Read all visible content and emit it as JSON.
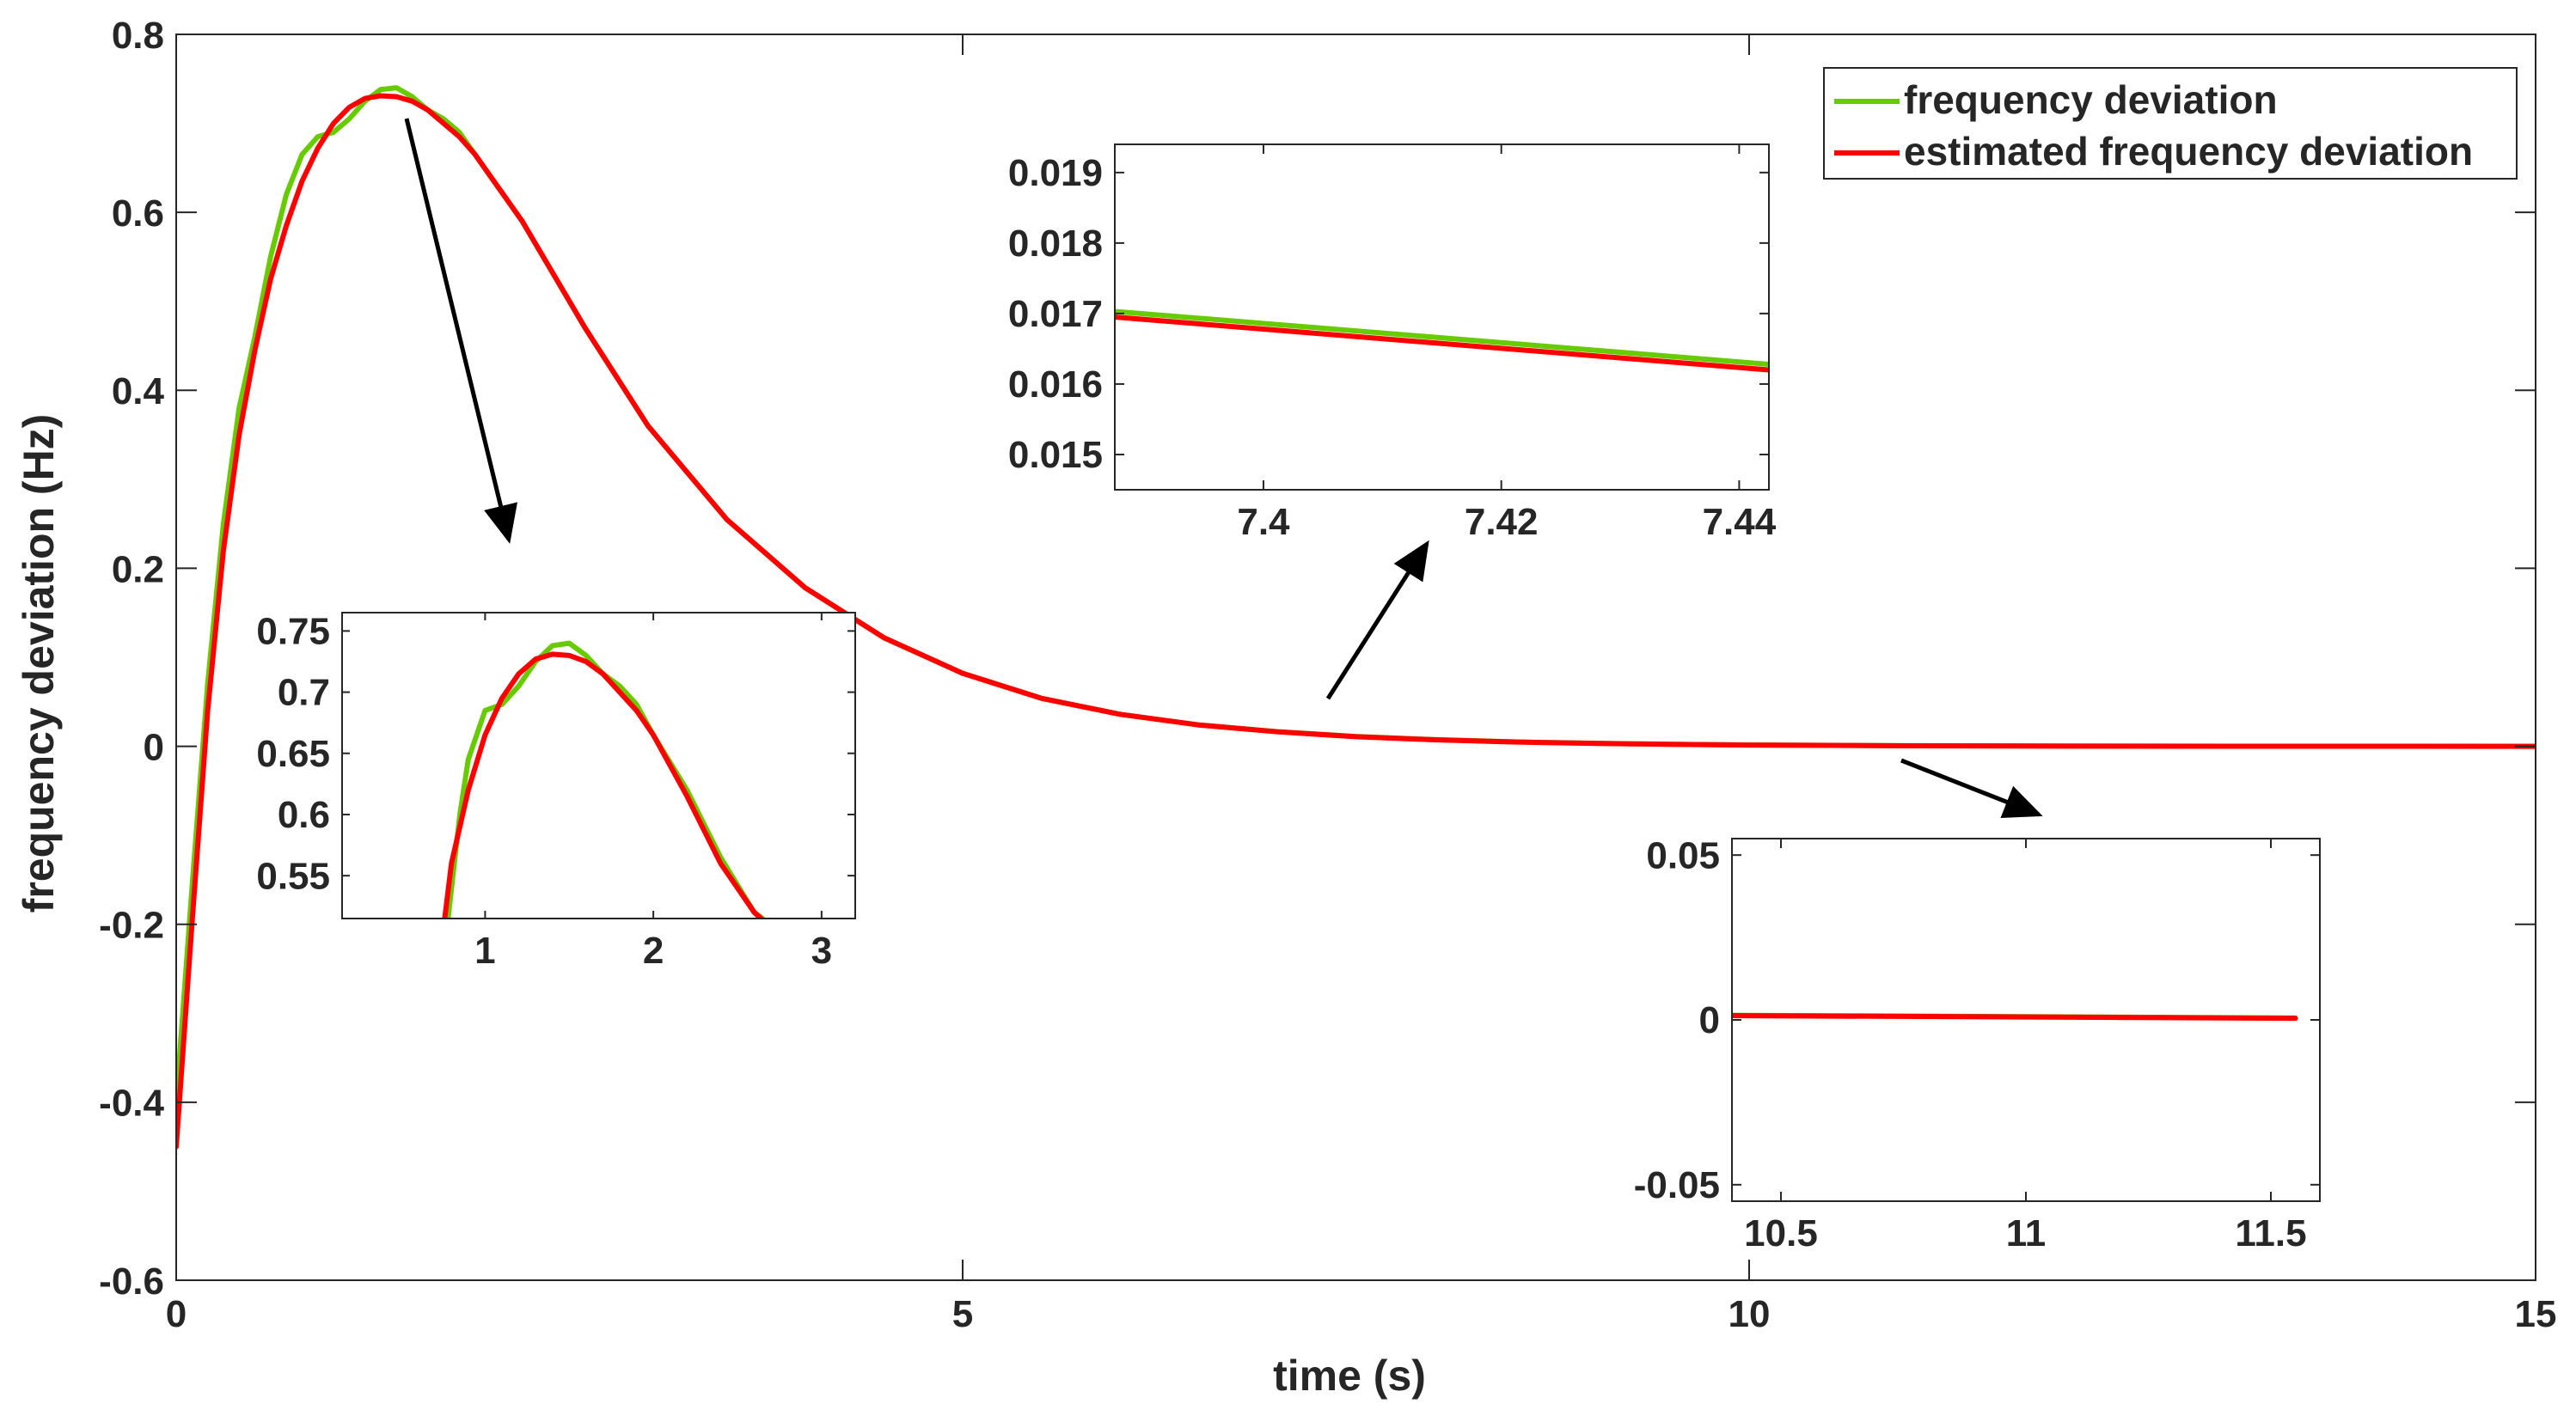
{
  "colors": {
    "green": "#66cc00",
    "red": "#ff0000",
    "axis": "#262626",
    "arrow": "#000000",
    "background": "#ffffff"
  },
  "legend": {
    "position": "top-right",
    "entries": [
      {
        "label": "frequency deviation",
        "color": "#66cc00"
      },
      {
        "label": "estimated frequency deviation",
        "color": "#ff0000"
      }
    ]
  },
  "chart_data": [
    {
      "id": "main",
      "type": "line",
      "title": "",
      "xlabel": "time (s)",
      "ylabel": "frequency deviation (Hz)",
      "xlim": [
        0,
        15
      ],
      "ylim": [
        -0.6,
        0.8
      ],
      "xticks": [
        0,
        5,
        10,
        15
      ],
      "xtick_labels": [
        "0",
        "5",
        "10",
        "15"
      ],
      "yticks": [
        -0.6,
        -0.4,
        -0.2,
        0,
        0.2,
        0.4,
        0.6,
        0.8
      ],
      "ytick_labels": [
        "-0.6",
        "-0.4",
        "-0.2",
        "0",
        "0.2",
        "0.4",
        "0.6",
        "0.8"
      ],
      "grid": false,
      "series": [
        {
          "name": "frequency deviation",
          "color": "#66cc00",
          "x": [
            0,
            0.1,
            0.2,
            0.3,
            0.4,
            0.5,
            0.6,
            0.7,
            0.8,
            0.9,
            1.0,
            1.1,
            1.2,
            1.3,
            1.4,
            1.5,
            1.6,
            1.7,
            1.8,
            1.9,
            2.0,
            2.2,
            2.4,
            2.6,
            2.8,
            3.0,
            3.5,
            4.0,
            4.5,
            5.0,
            5.5,
            6.0,
            6.5,
            7.0,
            7.5,
            8.0,
            8.5,
            9.0,
            9.5,
            10.0,
            11.0,
            12.0,
            13.0,
            14.0,
            15.0
          ],
          "y": [
            -0.4,
            -0.16,
            0.07,
            0.25,
            0.38,
            0.46,
            0.55,
            0.62,
            0.665,
            0.685,
            0.69,
            0.705,
            0.725,
            0.738,
            0.74,
            0.73,
            0.715,
            0.705,
            0.69,
            0.665,
            0.64,
            0.59,
            0.53,
            0.47,
            0.415,
            0.36,
            0.255,
            0.178,
            0.122,
            0.082,
            0.054,
            0.036,
            0.024,
            0.0165,
            0.011,
            0.0075,
            0.005,
            0.0034,
            0.0023,
            0.0015,
            0.0007,
            0.0003,
            0.0001,
            5e-05,
            0
          ]
        },
        {
          "name": "estimated frequency deviation",
          "color": "#ff0000",
          "x": [
            0,
            0.1,
            0.2,
            0.3,
            0.4,
            0.5,
            0.6,
            0.7,
            0.8,
            0.9,
            1.0,
            1.1,
            1.2,
            1.3,
            1.4,
            1.5,
            1.6,
            1.7,
            1.8,
            1.9,
            2.0,
            2.2,
            2.4,
            2.6,
            2.8,
            3.0,
            3.5,
            4.0,
            4.5,
            5.0,
            5.5,
            6.0,
            6.5,
            7.0,
            7.5,
            8.0,
            8.5,
            9.0,
            9.5,
            10.0,
            11.0,
            12.0,
            13.0,
            14.0,
            15.0
          ],
          "y": [
            -0.45,
            -0.2,
            0.04,
            0.22,
            0.35,
            0.445,
            0.525,
            0.585,
            0.635,
            0.672,
            0.7,
            0.718,
            0.728,
            0.731,
            0.73,
            0.725,
            0.715,
            0.7,
            0.685,
            0.665,
            0.64,
            0.59,
            0.53,
            0.47,
            0.415,
            0.36,
            0.255,
            0.178,
            0.122,
            0.082,
            0.054,
            0.036,
            0.024,
            0.0163,
            0.0108,
            0.0073,
            0.0049,
            0.0033,
            0.0022,
            0.0014,
            0.0006,
            0.0002,
            0.0001,
            3e-05,
            0
          ]
        }
      ]
    },
    {
      "id": "inset-peak",
      "type": "line",
      "xlim": [
        0.15,
        3.2
      ],
      "ylim": [
        0.515,
        0.765
      ],
      "xticks": [
        1,
        2,
        3
      ],
      "xtick_labels": [
        "1",
        "2",
        "3"
      ],
      "yticks": [
        0.55,
        0.6,
        0.65,
        0.7,
        0.75
      ],
      "ytick_labels": [
        "0.55",
        "0.6",
        "0.65",
        "0.7",
        "0.75"
      ],
      "series": [
        {
          "name": "frequency deviation",
          "color": "#66cc00",
          "x": [
            0.78,
            0.85,
            0.9,
            1.0,
            1.1,
            1.2,
            1.3,
            1.4,
            1.5,
            1.6,
            1.7,
            1.8,
            1.9,
            2.0,
            2.2,
            2.4,
            2.6,
            2.65
          ],
          "y": [
            0.515,
            0.6,
            0.645,
            0.685,
            0.69,
            0.705,
            0.725,
            0.738,
            0.74,
            0.73,
            0.715,
            0.705,
            0.69,
            0.665,
            0.62,
            0.565,
            0.52,
            0.515
          ]
        },
        {
          "name": "estimated frequency deviation",
          "color": "#ff0000",
          "x": [
            0.76,
            0.8,
            0.9,
            1.0,
            1.1,
            1.2,
            1.3,
            1.4,
            1.5,
            1.6,
            1.7,
            1.8,
            1.9,
            2.0,
            2.2,
            2.4,
            2.6,
            2.64
          ],
          "y": [
            0.515,
            0.56,
            0.62,
            0.665,
            0.695,
            0.715,
            0.727,
            0.731,
            0.73,
            0.725,
            0.715,
            0.7,
            0.685,
            0.665,
            0.615,
            0.56,
            0.52,
            0.515
          ]
        }
      ]
    },
    {
      "id": "inset-mid",
      "type": "line",
      "xlim": [
        7.3875,
        7.4425
      ],
      "ylim": [
        0.0145,
        0.0194
      ],
      "xticks": [
        7.4,
        7.42,
        7.44
      ],
      "xtick_labels": [
        "7.4",
        "7.42",
        "7.44"
      ],
      "yticks": [
        0.015,
        0.016,
        0.017,
        0.018,
        0.019
      ],
      "ytick_labels": [
        "0.015",
        "0.016",
        "0.017",
        "0.018",
        "0.019"
      ],
      "series": [
        {
          "name": "frequency deviation",
          "color": "#66cc00",
          "x": [
            7.3875,
            7.4425
          ],
          "y": [
            0.01703,
            0.01628
          ]
        },
        {
          "name": "estimated frequency deviation",
          "color": "#ff0000",
          "x": [
            7.3875,
            7.4425
          ],
          "y": [
            0.01695,
            0.0162
          ]
        }
      ]
    },
    {
      "id": "inset-tail",
      "type": "line",
      "xlim": [
        10.4,
        11.6
      ],
      "ylim": [
        -0.055,
        0.055
      ],
      "xticks": [
        10.5,
        11,
        11.5
      ],
      "xtick_labels": [
        "10.5",
        "11",
        "11.5"
      ],
      "yticks": [
        -0.05,
        0,
        0.05
      ],
      "ytick_labels": [
        "-0.05",
        "0",
        "0.05"
      ],
      "series": [
        {
          "name": "frequency deviation",
          "color": "#66cc00",
          "x": [
            10.4,
            11.55
          ],
          "y": [
            0.0014,
            0.0006
          ]
        },
        {
          "name": "estimated frequency deviation",
          "color": "#ff0000",
          "x": [
            10.4,
            11.55
          ],
          "y": [
            0.0013,
            0.0005
          ]
        }
      ]
    }
  ]
}
